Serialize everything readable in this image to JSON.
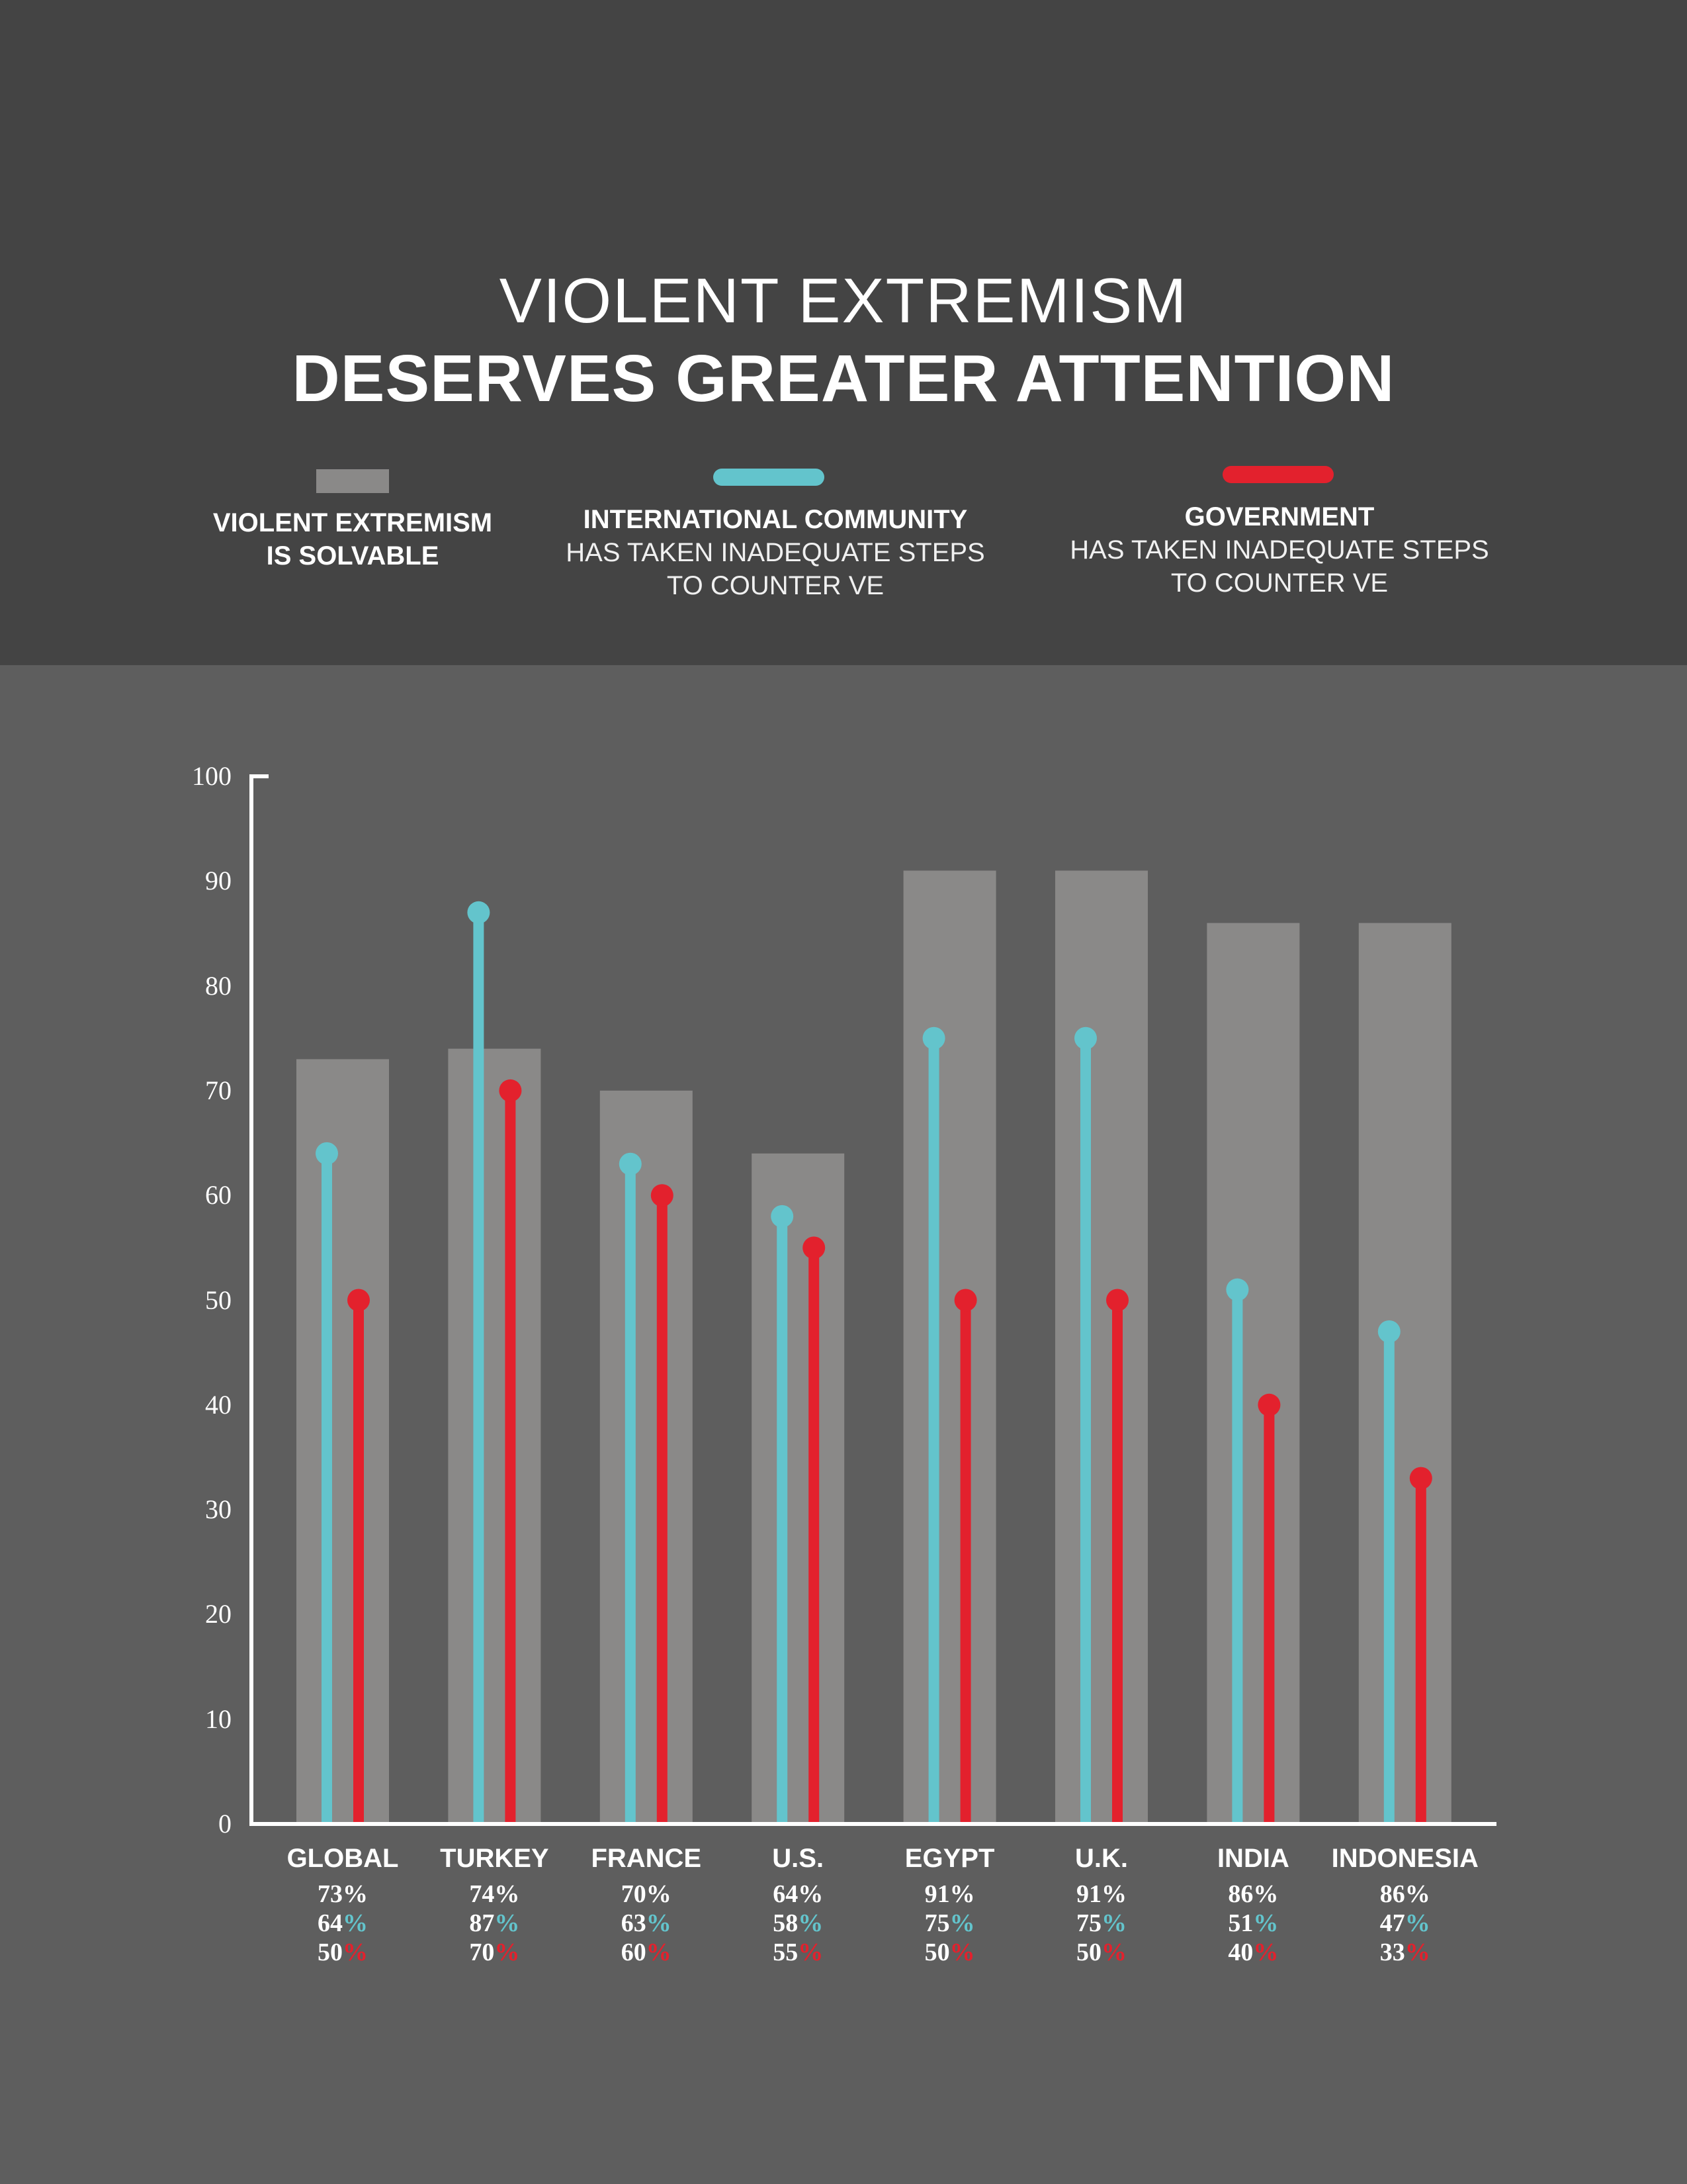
{
  "colors": {
    "header_bg": "#444444",
    "chart_bg": "#5e5e5e",
    "bar": "#8a8988",
    "international": "#63c4cc",
    "government": "#e3212d",
    "axis": "#ffffff"
  },
  "title": {
    "line1": "VIOLENT EXTREMISM",
    "line2": "DESERVES GREATER ATTENTION"
  },
  "legend": [
    {
      "bold": "VIOLENT EXTREMISM\nIS SOLVABLE",
      "light": "",
      "swatch": "bar"
    },
    {
      "bold": "INTERNATIONAL COMMUNITY",
      "light": "HAS TAKEN INADEQUATE STEPS\nTO COUNTER VE",
      "swatch": "international"
    },
    {
      "bold": "GOVERNMENT",
      "light": "HAS TAKEN INADEQUATE STEPS\nTO COUNTER VE",
      "swatch": "government"
    }
  ],
  "chart_data": {
    "type": "bar",
    "title": "VIOLENT EXTREMISM DESERVES GREATER ATTENTION",
    "categories": [
      "GLOBAL",
      "TURKEY",
      "FRANCE",
      "U.S.",
      "EGYPT",
      "U.K.",
      "INDIA",
      "INDONESIA"
    ],
    "series": [
      {
        "name": "VIOLENT EXTREMISM IS SOLVABLE",
        "mark": "bar",
        "values": [
          73,
          74,
          70,
          64,
          91,
          91,
          86,
          86
        ]
      },
      {
        "name": "INTERNATIONAL COMMUNITY HAS TAKEN INADEQUATE STEPS TO COUNTER VE",
        "mark": "lollipop",
        "values": [
          64,
          87,
          63,
          58,
          75,
          75,
          51,
          47
        ]
      },
      {
        "name": "GOVERNMENT HAS TAKEN INADEQUATE STEPS TO COUNTER VE",
        "mark": "lollipop",
        "values": [
          50,
          70,
          60,
          55,
          50,
          50,
          40,
          33
        ]
      }
    ],
    "value_labels": [
      [
        "73%",
        "74%",
        "70%",
        "64%",
        "91%",
        "91%",
        "86%",
        "86%"
      ],
      [
        "64%",
        "87%",
        "63%",
        "58%",
        "75%",
        "75%",
        "51%",
        "47%"
      ],
      [
        "50%",
        "70%",
        "60%",
        "55%",
        "50%",
        "50%",
        "40%",
        "33%"
      ]
    ],
    "yticks": [
      "0",
      "10",
      "20",
      "30",
      "40",
      "50",
      "60",
      "70",
      "80",
      "90",
      "100"
    ],
    "ylim": [
      0,
      100
    ],
    "xlabel": "",
    "ylabel": "",
    "grid": false,
    "legend_position": "top"
  }
}
